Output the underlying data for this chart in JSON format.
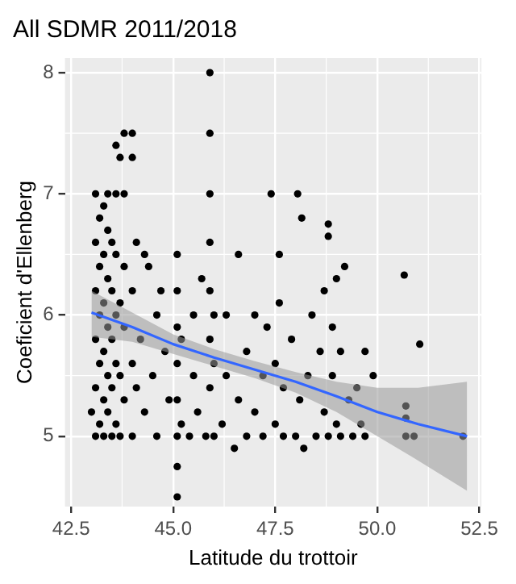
{
  "chart_data": {
    "type": "scatter",
    "title": "All SDMR 2011/2018",
    "xlabel": "Latitude du trottoir",
    "ylabel": "Coeficient d'Ellenberg",
    "xlim": [
      42.35,
      52.55
    ],
    "ylim": [
      4.42,
      8.12
    ],
    "xticks": [
      {
        "value": 42.5,
        "label": "42.5"
      },
      {
        "value": 45,
        "label": "45.0"
      },
      {
        "value": 47.5,
        "label": "47.5"
      },
      {
        "value": 50,
        "label": "50.0"
      },
      {
        "value": 52.5,
        "label": "52.5"
      }
    ],
    "yticks": [
      5,
      6,
      7,
      8
    ],
    "grid": true,
    "legend": false,
    "marker": "circle",
    "series": [
      {
        "color": "#000000",
        "x": [
          43.0,
          43.1,
          43.1,
          43.1,
          43.1,
          43.1,
          43.1,
          43.2,
          43.2,
          43.2,
          43.2,
          43.2,
          43.3,
          43.3,
          43.3,
          43.3,
          43.3,
          43.3,
          43.4,
          43.4,
          43.4,
          43.4,
          43.4,
          43.4,
          43.5,
          43.5,
          43.5,
          43.5,
          43.5,
          43.6,
          43.6,
          43.6,
          43.6,
          43.6,
          43.6,
          43.7,
          43.7,
          43.7,
          43.7,
          43.8,
          43.8,
          43.8,
          43.8,
          43.8,
          44.0,
          44.0,
          44.0,
          44.0,
          44.0,
          44.1,
          44.1,
          44.2,
          44.3,
          44.3,
          44.4,
          44.5,
          44.6,
          44.6,
          44.7,
          44.8,
          44.9,
          45.1,
          45.1,
          45.1,
          45.1,
          45.1,
          45.1,
          45.1,
          45.1,
          45.2,
          45.2,
          45.4,
          45.5,
          45.5,
          45.6,
          45.7,
          45.8,
          45.9,
          45.9,
          45.9,
          45.9,
          45.9,
          45.9,
          45.9,
          46.0,
          46.0,
          46.0,
          46.2,
          46.3,
          46.3,
          46.5,
          46.6,
          46.6,
          46.8,
          46.8,
          47.0,
          47.0,
          47.2,
          47.2,
          47.3,
          47.4,
          47.5,
          47.5,
          47.6,
          47.6,
          47.7,
          47.7,
          47.9,
          48.0,
          48.05,
          48.15,
          48.1,
          48.2,
          48.3,
          48.4,
          48.5,
          48.6,
          48.7,
          48.7,
          48.8,
          48.8,
          48.8,
          48.9,
          48.9,
          49.0,
          49.0,
          49.1,
          49.1,
          49.2,
          49.3,
          49.4,
          49.5,
          49.6,
          49.7,
          49.7,
          49.9,
          50.66,
          50.7,
          50.7,
          50.7,
          50.9,
          51.04,
          52.1
        ],
        "values": [
          5.2,
          5.0,
          5.4,
          5.8,
          6.2,
          6.6,
          7.0,
          5.1,
          5.6,
          6.0,
          6.4,
          6.8,
          5.0,
          5.3,
          5.7,
          6.1,
          6.5,
          6.9,
          5.2,
          5.5,
          5.9,
          6.3,
          6.7,
          7.0,
          5.0,
          5.4,
          5.8,
          6.2,
          6.6,
          5.1,
          5.6,
          6.0,
          6.5,
          7.0,
          7.4,
          5.0,
          5.5,
          6.1,
          7.3,
          5.3,
          5.9,
          6.4,
          7.0,
          7.5,
          5.0,
          5.6,
          6.2,
          7.5,
          7.3,
          5.4,
          6.6,
          5.8,
          5.2,
          6.5,
          6.4,
          5.5,
          5.0,
          6.0,
          6.2,
          5.7,
          5.3,
          4.5,
          4.75,
          5.0,
          5.3,
          5.6,
          5.9,
          6.2,
          6.5,
          5.1,
          5.8,
          5.0,
          5.5,
          6.0,
          5.2,
          6.3,
          5.0,
          5.4,
          5.8,
          6.2,
          6.6,
          7.0,
          7.5,
          8.0,
          5.0,
          5.6,
          6.0,
          5.1,
          5.5,
          6.0,
          4.9,
          5.3,
          6.5,
          5.0,
          5.7,
          5.2,
          6.0,
          5.0,
          5.5,
          5.9,
          7.0,
          5.1,
          5.6,
          6.5,
          6.1,
          5.0,
          5.4,
          5.8,
          5.0,
          7.0,
          6.8,
          5.3,
          4.9,
          5.5,
          6.0,
          5.0,
          5.7,
          5.2,
          6.2,
          6.75,
          6.65,
          5.0,
          5.5,
          5.9,
          5.1,
          6.3,
          5.0,
          5.7,
          6.4,
          5.3,
          5.0,
          5.4,
          5.1,
          5.0,
          5.7,
          5.5,
          6.33,
          5.25,
          5.15,
          5.0,
          5.0,
          5.76,
          5.0
        ]
      },
      {
        "type": "line",
        "color": "#3366ff",
        "marker": "none",
        "x": [
          43.0,
          44,
          45,
          46,
          47,
          48,
          49,
          50,
          51,
          52.2
        ],
        "values": [
          6.02,
          5.9,
          5.76,
          5.65,
          5.55,
          5.45,
          5.33,
          5.2,
          5.1,
          5.0
        ],
        "lower": [
          5.82,
          5.78,
          5.68,
          5.58,
          5.48,
          5.36,
          5.2,
          5.0,
          4.8,
          4.55
        ],
        "upper": [
          6.2,
          6.02,
          5.84,
          5.72,
          5.62,
          5.53,
          5.45,
          5.4,
          5.4,
          5.45
        ]
      }
    ]
  }
}
